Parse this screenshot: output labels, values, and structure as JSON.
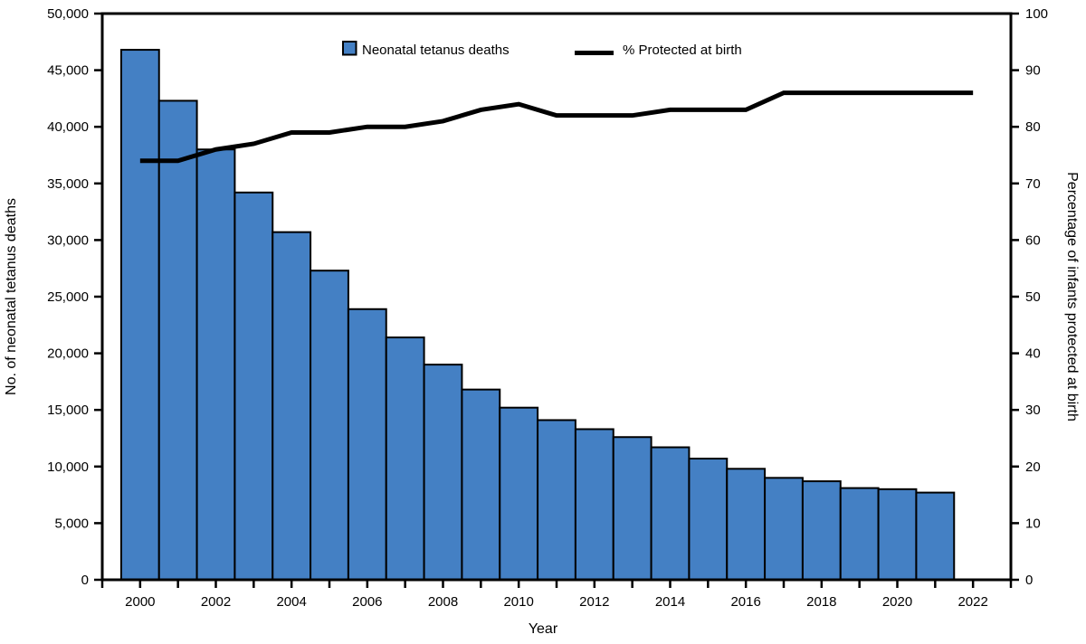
{
  "chart_data": {
    "type": "combo-bar-line",
    "title": "",
    "xlabel": "Year",
    "ylabel_left": "No. of neonatal tetanus deaths",
    "ylabel_right": "Percentage of infants protected at birth",
    "grid": false,
    "legend_position": "top-inside",
    "colors": {
      "bar_fill": "#4480C4",
      "bar_border": "#000000",
      "line": "#000000",
      "background": "#ffffff"
    },
    "axes": {
      "left": {
        "label": "No. of neonatal tetanus deaths",
        "range": [
          0,
          50000
        ],
        "tick_interval": 5000,
        "tick_labels": [
          "0",
          "5,000",
          "10,000",
          "15,000",
          "20,000",
          "25,000",
          "30,000",
          "35,000",
          "40,000",
          "45,000",
          "50,000"
        ]
      },
      "right": {
        "label": "Percentage of infants protected at birth",
        "range": [
          0,
          100
        ],
        "tick_interval": 10,
        "tick_labels": [
          "0",
          "10",
          "20",
          "30",
          "40",
          "50",
          "60",
          "70",
          "80",
          "90",
          "100"
        ]
      },
      "x": {
        "label": "Year",
        "range": [
          1999,
          2023
        ],
        "minor_tick_interval": 1,
        "labeled_ticks": [
          2000,
          2002,
          2004,
          2006,
          2008,
          2010,
          2012,
          2014,
          2016,
          2018,
          2020,
          2022
        ]
      }
    },
    "series": [
      {
        "name": "Neonatal tetanus deaths",
        "type": "bar",
        "axis": "left",
        "color": "#4480C4",
        "x": [
          2000,
          2001,
          2002,
          2003,
          2004,
          2005,
          2006,
          2007,
          2008,
          2009,
          2010,
          2011,
          2012,
          2013,
          2014,
          2015,
          2016,
          2017,
          2018,
          2019,
          2020,
          2021
        ],
        "values": [
          46800,
          42300,
          38000,
          34200,
          30700,
          27300,
          23900,
          21400,
          19000,
          16800,
          15200,
          14100,
          13300,
          12600,
          11700,
          10700,
          9800,
          9000,
          8700,
          8100,
          8000,
          7700
        ]
      },
      {
        "name": "% Protected at birth",
        "type": "line",
        "axis": "right",
        "color": "#000000",
        "x": [
          2000,
          2001,
          2002,
          2003,
          2004,
          2005,
          2006,
          2007,
          2008,
          2009,
          2010,
          2011,
          2012,
          2013,
          2014,
          2015,
          2016,
          2017,
          2018,
          2019,
          2020,
          2021,
          2022
        ],
        "values": [
          74,
          74,
          76,
          77,
          79,
          79,
          80,
          80,
          81,
          83,
          84,
          82,
          82,
          82,
          83,
          83,
          83,
          86,
          86,
          86,
          86,
          86,
          86
        ]
      }
    ]
  }
}
